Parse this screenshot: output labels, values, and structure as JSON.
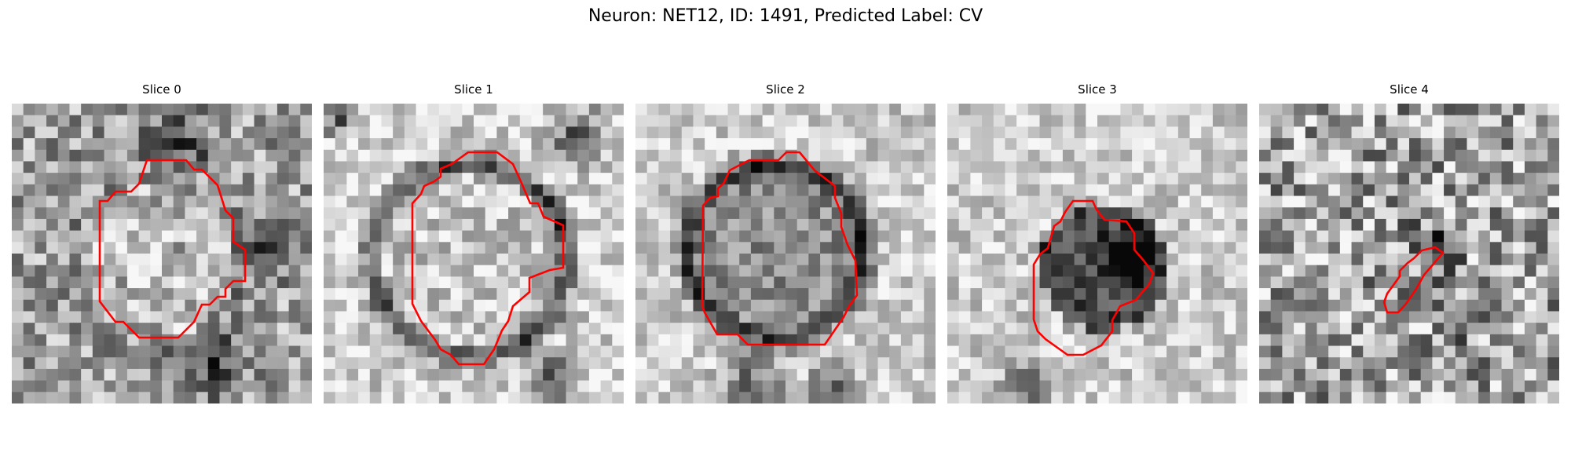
{
  "figure": {
    "title": "Neuron: NET12, ID: 1491, Predicted Label: CV"
  },
  "panels": [
    {
      "title": "Slice 0",
      "image": "grayscale-microscopy-slice",
      "contour_color": "#ff0000"
    },
    {
      "title": "Slice 1",
      "image": "grayscale-microscopy-slice",
      "contour_color": "#ff0000"
    },
    {
      "title": "Slice 2",
      "image": "grayscale-microscopy-slice",
      "contour_color": "#ff0000"
    },
    {
      "title": "Slice 3",
      "image": "grayscale-microscopy-slice",
      "contour_color": "#ff0000"
    },
    {
      "title": "Slice 4",
      "image": "grayscale-microscopy-slice",
      "contour_color": "#ff0000"
    }
  ]
}
